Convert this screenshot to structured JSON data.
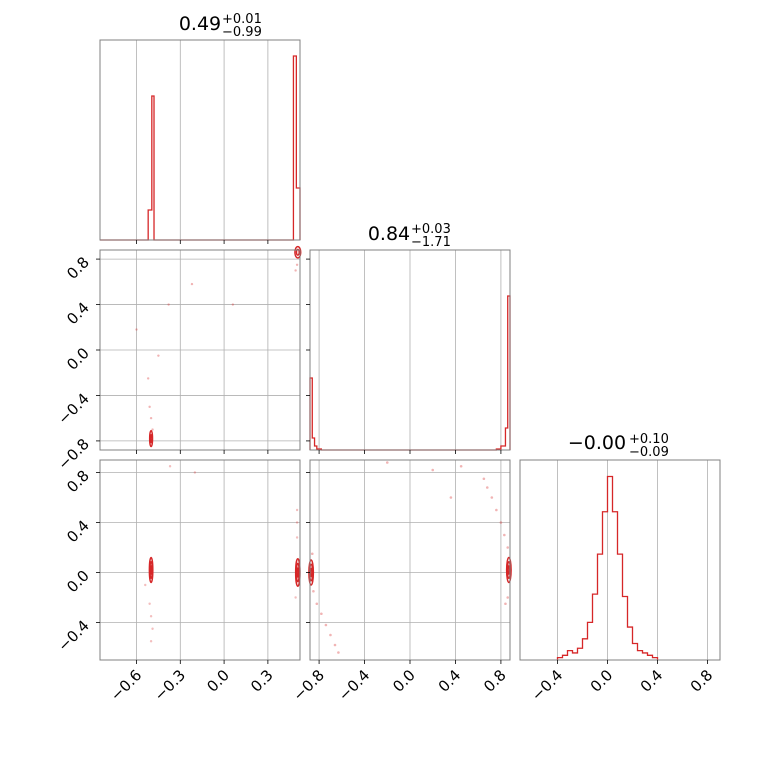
{
  "colors": {
    "series": "#d62728",
    "grid": "#b0b0b0",
    "frame": "#808080"
  },
  "titles": [
    {
      "main": "0.49",
      "sup": "+0.01",
      "sub": "−0.99"
    },
    {
      "main": "0.84",
      "sup": "+0.03",
      "sub": "−1.71"
    },
    {
      "main": "−0.00",
      "sup": "+0.10",
      "sub": "−0.09"
    }
  ],
  "chart_data": {
    "type": "corner",
    "grid": true,
    "params": [
      {
        "range": [
          -0.85,
          0.52
        ],
        "ticks": [
          -0.6,
          -0.3,
          0.0,
          0.3
        ],
        "tick_labels": [
          "−0.6",
          "−0.3",
          "0.0",
          "0.3"
        ]
      },
      {
        "range": [
          -0.88,
          0.88
        ],
        "ticks": [
          -0.8,
          -0.4,
          0.0,
          0.4,
          0.8
        ],
        "tick_labels": [
          "−0.8",
          "−0.4",
          "0.0",
          "0.4",
          "0.8"
        ]
      },
      {
        "range": [
          -0.7,
          0.9
        ],
        "ticks": [
          -0.4,
          0.0,
          0.4,
          0.8
        ],
        "tick_labels": [
          "−0.4",
          "0.0",
          "0.4",
          "0.8"
        ]
      }
    ],
    "panel2_yticks": {
      "ticks": [
        -0.4,
        0.0,
        0.4,
        0.8
      ],
      "tick_labels": [
        "−0.4",
        "0.0",
        "0.4",
        "0.8"
      ],
      "range": [
        -0.7,
        0.9
      ]
    },
    "hist1": {
      "edges": [
        -0.85,
        -0.52,
        -0.495,
        -0.48,
        0.475,
        0.495,
        0.52
      ],
      "values": [
        0,
        0.15,
        0.72,
        0,
        0.92,
        0.26
      ],
      "ymax": 1.0
    },
    "hist2": {
      "edges": [
        -0.88,
        -0.86,
        -0.84,
        -0.82,
        -0.78,
        0.76,
        0.8,
        0.84,
        0.86,
        0.88
      ],
      "values": [
        0.36,
        0.06,
        0.02,
        0.005,
        0,
        0.005,
        0.02,
        0.11,
        0.77
      ],
      "ymax": 1.0
    },
    "hist3": {
      "edges": [
        -0.4,
        -0.36,
        -0.32,
        -0.28,
        -0.24,
        -0.2,
        -0.16,
        -0.12,
        -0.08,
        -0.04,
        0.0,
        0.04,
        0.08,
        0.12,
        0.16,
        0.2,
        0.24,
        0.28,
        0.32,
        0.36,
        0.4
      ],
      "values": [
        0.01,
        0.02,
        0.04,
        0.03,
        0.05,
        0.09,
        0.16,
        0.28,
        0.45,
        0.63,
        0.78,
        0.63,
        0.45,
        0.27,
        0.14,
        0.07,
        0.04,
        0.03,
        0.02,
        0.01
      ],
      "ymax": 0.85
    }
  }
}
